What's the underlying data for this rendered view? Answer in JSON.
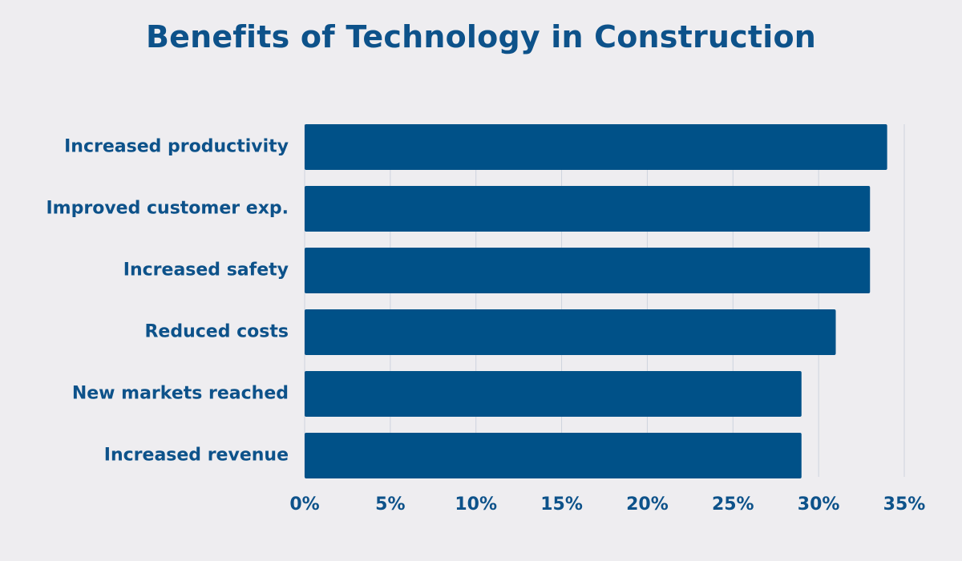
{
  "chart_data": {
    "type": "bar",
    "orientation": "horizontal",
    "title": "Benefits of Technology in Construction",
    "xlabel": "",
    "ylabel": "",
    "categories": [
      "Increased productivity",
      "Improved customer exp.",
      "Increased safety",
      "Reduced costs",
      "New markets reached",
      "Increased revenue"
    ],
    "values": [
      34,
      33,
      33,
      31,
      29,
      29
    ],
    "xlim": [
      0,
      35
    ],
    "x_ticks": [
      0,
      5,
      10,
      15,
      20,
      25,
      30,
      35
    ],
    "tick_suffix": "%",
    "grid": true,
    "legend": "none",
    "colors": {
      "bar": "#005188",
      "text": "#0d528a",
      "grid": "#cdd3de",
      "background": "#eeedf0"
    }
  }
}
